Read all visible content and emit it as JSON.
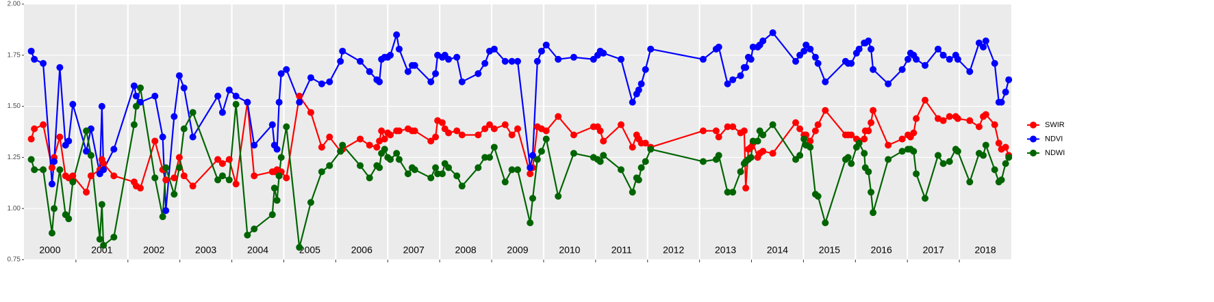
{
  "chart_data": {
    "type": "line",
    "x": [
      2000.14,
      2000.2,
      2000.37,
      2000.54,
      2000.58,
      2000.69,
      2000.8,
      2000.86,
      2000.94,
      2001.2,
      2001.29,
      2001.46,
      2001.5,
      2001.53,
      2001.73,
      2002.12,
      2002.16,
      2002.24,
      2002.52,
      2002.67,
      2002.73,
      2002.89,
      2002.99,
      2003.08,
      2003.25,
      2003.73,
      2003.82,
      2003.95,
      2004.08,
      2004.3,
      2004.43,
      2004.78,
      2004.82,
      2004.87,
      2004.91,
      2004.95,
      2005.05,
      2005.3,
      2005.52,
      2005.73,
      2005.88,
      2006.09,
      2006.13,
      2006.47,
      2006.65,
      2006.79,
      2006.84,
      2006.88,
      2006.94,
      2007.0,
      2007.05,
      2007.17,
      2007.22,
      2007.39,
      2007.47,
      2007.52,
      2007.83,
      2007.92,
      2007.96,
      2008.05,
      2008.1,
      2008.17,
      2008.33,
      2008.43,
      2008.74,
      2008.87,
      2008.96,
      2009.05,
      2009.26,
      2009.39,
      2009.5,
      2009.74,
      2009.79,
      2009.88,
      2009.96,
      2010.05,
      2010.28,
      2010.58,
      2010.96,
      2011.04,
      2011.09,
      2011.15,
      2011.49,
      2011.71,
      2011.79,
      2011.83,
      2011.88,
      2011.96,
      2012.06,
      2013.07,
      2013.32,
      2013.37,
      2013.54,
      2013.64,
      2013.79,
      2013.86,
      2013.89,
      2013.94,
      2013.99,
      2014.03,
      2014.12,
      2014.16,
      2014.22,
      2014.41,
      2014.85,
      2014.93,
      2015.01,
      2015.05,
      2015.13,
      2015.23,
      2015.28,
      2015.42,
      2015.81,
      2015.86,
      2015.92,
      2016.02,
      2016.07,
      2016.17,
      2016.19,
      2016.25,
      2016.3,
      2016.34,
      2016.63,
      2016.9,
      2017.01,
      2017.06,
      2017.12,
      2017.17,
      2017.34,
      2017.59,
      2017.69,
      2017.81,
      2017.93,
      2017.97,
      2018.2,
      2018.38,
      2018.46,
      2018.51,
      2018.68,
      2018.76,
      2018.81,
      2018.89,
      2018.95
    ],
    "series": [
      {
        "name": "SWIR",
        "color": "#ff0000",
        "values": [
          1.34,
          1.39,
          1.41,
          1.2,
          1.25,
          1.35,
          1.16,
          1.15,
          1.16,
          1.08,
          1.16,
          1.19,
          1.24,
          1.22,
          1.16,
          1.13,
          1.11,
          1.1,
          1.33,
          1.19,
          1.14,
          1.15,
          1.25,
          1.16,
          1.11,
          1.24,
          1.22,
          1.24,
          1.12,
          1.52,
          1.16,
          1.18,
          1.18,
          1.19,
          1.16,
          1.18,
          1.15,
          1.55,
          1.47,
          1.3,
          1.35,
          1.28,
          1.29,
          1.34,
          1.31,
          1.3,
          1.33,
          1.38,
          1.34,
          1.37,
          1.36,
          1.38,
          1.38,
          1.39,
          1.38,
          1.38,
          1.33,
          1.35,
          1.43,
          1.42,
          1.39,
          1.37,
          1.38,
          1.36,
          1.36,
          1.39,
          1.41,
          1.39,
          1.41,
          1.36,
          1.39,
          1.17,
          1.2,
          1.4,
          1.39,
          1.38,
          1.45,
          1.36,
          1.4,
          1.4,
          1.38,
          1.33,
          1.41,
          1.3,
          1.36,
          1.34,
          1.32,
          1.32,
          1.3,
          1.38,
          1.38,
          1.35,
          1.4,
          1.4,
          1.37,
          1.38,
          1.1,
          1.29,
          1.3,
          1.32,
          1.25,
          1.27,
          1.28,
          1.27,
          1.42,
          1.39,
          1.36,
          1.36,
          1.33,
          1.38,
          1.41,
          1.48,
          1.36,
          1.36,
          1.36,
          1.34,
          1.33,
          1.34,
          1.38,
          1.38,
          1.42,
          1.48,
          1.31,
          1.34,
          1.36,
          1.35,
          1.37,
          1.44,
          1.53,
          1.44,
          1.43,
          1.45,
          1.45,
          1.44,
          1.43,
          1.4,
          1.45,
          1.46,
          1.41,
          1.32,
          1.29,
          1.3,
          1.26
        ]
      },
      {
        "name": "NDVI",
        "color": "#0000ff",
        "values": [
          1.77,
          1.73,
          1.71,
          1.12,
          1.23,
          1.69,
          1.31,
          1.33,
          1.51,
          1.28,
          1.39,
          1.17,
          1.5,
          1.19,
          1.29,
          1.6,
          1.55,
          1.52,
          1.55,
          1.35,
          0.99,
          1.45,
          1.65,
          1.59,
          1.35,
          1.55,
          1.47,
          1.58,
          1.55,
          1.52,
          1.31,
          1.41,
          1.31,
          1.29,
          1.52,
          1.66,
          1.68,
          1.52,
          1.64,
          1.61,
          1.62,
          1.72,
          1.77,
          1.72,
          1.67,
          1.63,
          1.62,
          1.73,
          1.74,
          1.74,
          1.75,
          1.85,
          1.78,
          1.67,
          1.7,
          1.7,
          1.62,
          1.66,
          1.75,
          1.74,
          1.75,
          1.73,
          1.74,
          1.62,
          1.66,
          1.71,
          1.77,
          1.78,
          1.72,
          1.72,
          1.72,
          1.2,
          1.26,
          1.72,
          1.77,
          1.8,
          1.73,
          1.74,
          1.73,
          1.75,
          1.77,
          1.76,
          1.73,
          1.52,
          1.56,
          1.58,
          1.61,
          1.68,
          1.78,
          1.73,
          1.78,
          1.79,
          1.61,
          1.63,
          1.65,
          1.69,
          1.69,
          1.74,
          1.73,
          1.79,
          1.79,
          1.8,
          1.82,
          1.86,
          1.72,
          1.75,
          1.77,
          1.8,
          1.78,
          1.74,
          1.71,
          1.62,
          1.72,
          1.71,
          1.71,
          1.76,
          1.78,
          1.81,
          1.81,
          1.82,
          1.78,
          1.68,
          1.61,
          1.68,
          1.73,
          1.76,
          1.75,
          1.73,
          1.7,
          1.78,
          1.75,
          1.73,
          1.75,
          1.73,
          1.67,
          1.81,
          1.79,
          1.82,
          1.71,
          1.52,
          1.52,
          1.57,
          1.63
        ]
      },
      {
        "name": "NDWI",
        "color": "#006400",
        "values": [
          1.24,
          1.19,
          1.19,
          0.88,
          1.0,
          1.19,
          0.97,
          0.95,
          1.13,
          1.38,
          1.26,
          0.85,
          1.02,
          0.82,
          0.86,
          1.41,
          1.5,
          1.59,
          1.15,
          0.96,
          1.2,
          1.07,
          1.2,
          1.39,
          1.47,
          1.14,
          1.16,
          1.14,
          1.51,
          0.87,
          0.9,
          0.97,
          1.1,
          1.04,
          1.16,
          1.25,
          1.4,
          0.81,
          1.03,
          1.18,
          1.21,
          1.28,
          1.31,
          1.21,
          1.15,
          1.21,
          1.2,
          1.27,
          1.29,
          1.25,
          1.24,
          1.27,
          1.24,
          1.17,
          1.2,
          1.19,
          1.15,
          1.2,
          1.17,
          1.17,
          1.22,
          1.2,
          1.16,
          1.11,
          1.2,
          1.25,
          1.25,
          1.3,
          1.13,
          1.19,
          1.19,
          0.93,
          1.05,
          1.24,
          1.28,
          1.34,
          1.06,
          1.27,
          1.25,
          1.24,
          1.23,
          1.26,
          1.19,
          1.08,
          1.15,
          1.14,
          1.2,
          1.23,
          1.29,
          1.23,
          1.24,
          1.26,
          1.08,
          1.08,
          1.18,
          1.22,
          1.23,
          1.24,
          1.25,
          1.33,
          1.33,
          1.38,
          1.36,
          1.41,
          1.24,
          1.26,
          1.34,
          1.31,
          1.3,
          1.07,
          1.06,
          0.93,
          1.24,
          1.25,
          1.22,
          1.3,
          1.32,
          1.27,
          1.2,
          1.18,
          1.08,
          0.98,
          1.24,
          1.28,
          1.29,
          1.29,
          1.28,
          1.17,
          1.05,
          1.26,
          1.22,
          1.23,
          1.29,
          1.28,
          1.13,
          1.27,
          1.26,
          1.31,
          1.19,
          1.13,
          1.14,
          1.22,
          1.25
        ]
      }
    ],
    "xlim": [
      2000,
      2019
    ],
    "xticks": [
      {
        "value": 2000.5,
        "label": "2000"
      },
      {
        "value": 2001.5,
        "label": "2001"
      },
      {
        "value": 2002.5,
        "label": "2002"
      },
      {
        "value": 2003.5,
        "label": "2003"
      },
      {
        "value": 2004.5,
        "label": "2004"
      },
      {
        "value": 2005.5,
        "label": "2005"
      },
      {
        "value": 2006.5,
        "label": "2006"
      },
      {
        "value": 2007.5,
        "label": "2007"
      },
      {
        "value": 2008.5,
        "label": "2008"
      },
      {
        "value": 2009.5,
        "label": "2009"
      },
      {
        "value": 2010.5,
        "label": "2010"
      },
      {
        "value": 2011.5,
        "label": "2011"
      },
      {
        "value": 2012.5,
        "label": "2012"
      },
      {
        "value": 2013.5,
        "label": "2013"
      },
      {
        "value": 2014.5,
        "label": "2014"
      },
      {
        "value": 2015.5,
        "label": "2015"
      },
      {
        "value": 2016.5,
        "label": "2016"
      },
      {
        "value": 2017.5,
        "label": "2017"
      },
      {
        "value": 2018.5,
        "label": "2018"
      }
    ],
    "xgrid": [
      2001,
      2002,
      2003,
      2004,
      2005,
      2006,
      2007,
      2008,
      2009,
      2010,
      2011,
      2012,
      2013,
      2014,
      2015,
      2016,
      2017,
      2018
    ],
    "ylim": [
      0.75,
      2.0
    ],
    "yticks": [
      {
        "value": 0.75,
        "label": "0.75"
      },
      {
        "value": 1.0,
        "label": "1.00"
      },
      {
        "value": 1.25,
        "label": "1.25"
      },
      {
        "value": 1.5,
        "label": "1.50"
      },
      {
        "value": 1.75,
        "label": "1.75"
      },
      {
        "value": 2.0,
        "label": "2.00"
      }
    ],
    "grid": true,
    "legend": "right"
  }
}
